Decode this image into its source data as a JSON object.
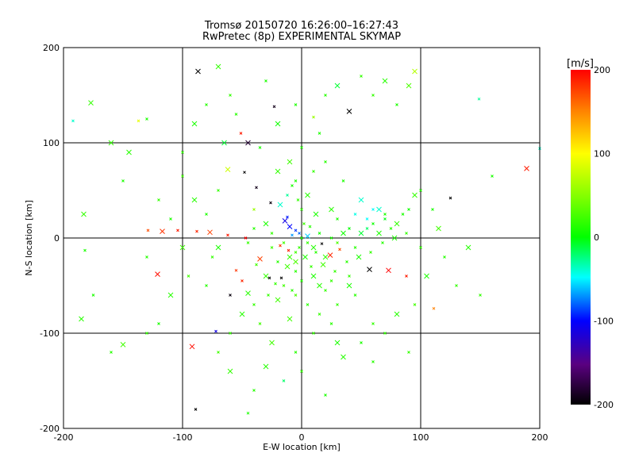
{
  "chart_data": {
    "type": "scatter",
    "title": "Tromsø 20150720 16:26:00–16:27:43",
    "subtitle": "RwPretec (8p) EXPERIMENTAL SKYMAP",
    "xlabel": "E-W location [km]",
    "ylabel": "N-S location [km]",
    "xlim": [
      -200,
      200
    ],
    "ylim": [
      -200,
      200
    ],
    "xticks": [
      -200,
      -100,
      0,
      100,
      200
    ],
    "yticks": [
      -200,
      -100,
      0,
      100,
      200
    ],
    "grid_lines": [
      -100,
      0,
      100
    ],
    "colorbar": {
      "label": "[m/s]",
      "range": [
        -200,
        200
      ],
      "ticks": [
        200,
        100,
        0,
        -100,
        -200
      ]
    },
    "marker": "x",
    "points_format": [
      "x_km",
      "y_km",
      "velocity_m_s"
    ],
    "points": [
      [
        -87,
        175,
        -200
      ],
      [
        -23,
        138,
        -190
      ],
      [
        -51,
        110,
        190
      ],
      [
        189,
        73,
        190
      ],
      [
        125,
        42,
        -200
      ],
      [
        -129,
        8,
        170
      ],
      [
        -117,
        7,
        180
      ],
      [
        -104,
        8,
        190
      ],
      [
        -88,
        7,
        185
      ],
      [
        -77,
        6,
        175
      ],
      [
        -62,
        3,
        190
      ],
      [
        -47,
        0,
        200
      ],
      [
        -121,
        -38,
        195
      ],
      [
        88,
        -40,
        190
      ],
      [
        111,
        -74,
        150
      ],
      [
        -92,
        -114,
        195
      ],
      [
        -72,
        -98,
        -110
      ],
      [
        -89,
        -180,
        -200
      ],
      [
        57,
        -33,
        -200
      ],
      [
        -27,
        -42,
        -200
      ],
      [
        -17,
        -42,
        -200
      ],
      [
        -177,
        142,
        20
      ],
      [
        -192,
        123,
        -40
      ],
      [
        -137,
        123,
        90
      ],
      [
        -183,
        25,
        20
      ],
      [
        -182,
        -13,
        10
      ],
      [
        149,
        146,
        -30
      ],
      [
        95,
        175,
        70
      ],
      [
        -45,
        -184,
        10
      ],
      [
        200,
        94,
        -40
      ],
      [
        -10,
        12,
        -100
      ],
      [
        -5,
        8,
        -90
      ],
      [
        -2,
        5,
        -80
      ],
      [
        -14,
        18,
        -110
      ],
      [
        -8,
        3,
        -70
      ],
      [
        -12,
        22,
        -95
      ],
      [
        5,
        2,
        -60
      ],
      [
        -18,
        -8,
        180
      ],
      [
        -11,
        -13,
        190
      ],
      [
        24,
        -18,
        185
      ],
      [
        32,
        -12,
        170
      ],
      [
        17,
        -6,
        -200
      ],
      [
        -35,
        -22,
        175
      ],
      [
        -55,
        -34,
        180
      ],
      [
        -60,
        -60,
        -195
      ],
      [
        73,
        -34,
        200
      ],
      [
        -50,
        -45,
        185
      ],
      [
        -48,
        69,
        -200
      ],
      [
        -45,
        100,
        -180
      ],
      [
        -38,
        53,
        -190
      ],
      [
        -26,
        37,
        -195
      ],
      [
        40,
        133,
        -200
      ],
      [
        10,
        127,
        60
      ],
      [
        -40,
        30,
        60
      ],
      [
        -62,
        72,
        80
      ],
      [
        0,
        0,
        10
      ],
      [
        5,
        -5,
        20
      ],
      [
        10,
        -10,
        15
      ],
      [
        -5,
        -15,
        25
      ],
      [
        15,
        5,
        5
      ],
      [
        20,
        -20,
        20
      ],
      [
        25,
        0,
        10
      ],
      [
        30,
        -5,
        30
      ],
      [
        -10,
        -20,
        20
      ],
      [
        -20,
        -25,
        15
      ],
      [
        -25,
        -10,
        25
      ],
      [
        35,
        5,
        5
      ],
      [
        40,
        10,
        0
      ],
      [
        45,
        -10,
        15
      ],
      [
        50,
        5,
        -10
      ],
      [
        55,
        10,
        -20
      ],
      [
        60,
        15,
        5
      ],
      [
        65,
        5,
        10
      ],
      [
        70,
        20,
        -5
      ],
      [
        75,
        10,
        15
      ],
      [
        80,
        15,
        20
      ],
      [
        85,
        25,
        10
      ],
      [
        90,
        30,
        5
      ],
      [
        -30,
        -40,
        20
      ],
      [
        -15,
        -50,
        25
      ],
      [
        0,
        -45,
        15
      ],
      [
        10,
        -40,
        10
      ],
      [
        20,
        -55,
        20
      ],
      [
        -5,
        -60,
        30
      ],
      [
        -20,
        -65,
        25
      ],
      [
        5,
        -70,
        15
      ],
      [
        15,
        -80,
        20
      ],
      [
        -10,
        -85,
        25
      ],
      [
        25,
        -90,
        15
      ],
      [
        30,
        -70,
        20
      ],
      [
        40,
        -50,
        10
      ],
      [
        45,
        -60,
        15
      ],
      [
        -40,
        -70,
        20
      ],
      [
        -50,
        -80,
        15
      ],
      [
        -35,
        -90,
        25
      ],
      [
        -60,
        -100,
        20
      ],
      [
        -25,
        -110,
        25
      ],
      [
        -5,
        -120,
        15
      ],
      [
        10,
        -100,
        20
      ],
      [
        30,
        -110,
        10
      ],
      [
        0,
        -140,
        20
      ],
      [
        -15,
        -150,
        -20
      ],
      [
        -30,
        -135,
        15
      ],
      [
        -70,
        -120,
        25
      ],
      [
        0,
        30,
        20
      ],
      [
        5,
        45,
        15
      ],
      [
        -5,
        60,
        10
      ],
      [
        10,
        70,
        20
      ],
      [
        -10,
        80,
        25
      ],
      [
        0,
        95,
        15
      ],
      [
        15,
        110,
        10
      ],
      [
        -20,
        120,
        5
      ],
      [
        -5,
        140,
        10
      ],
      [
        20,
        150,
        15
      ],
      [
        30,
        160,
        -10
      ],
      [
        -30,
        165,
        10
      ],
      [
        50,
        170,
        20
      ],
      [
        70,
        165,
        15
      ],
      [
        60,
        150,
        20
      ],
      [
        80,
        140,
        10
      ],
      [
        90,
        160,
        30
      ],
      [
        -60,
        150,
        20
      ],
      [
        -80,
        140,
        15
      ],
      [
        -90,
        120,
        10
      ],
      [
        -100,
        90,
        20
      ],
      [
        -100,
        65,
        25
      ],
      [
        -90,
        40,
        15
      ],
      [
        -80,
        25,
        10
      ],
      [
        -70,
        50,
        20
      ],
      [
        -65,
        100,
        -10
      ],
      [
        -55,
        130,
        15
      ],
      [
        -35,
        95,
        10
      ],
      [
        -20,
        70,
        20
      ],
      [
        20,
        80,
        15
      ],
      [
        35,
        60,
        10
      ],
      [
        50,
        40,
        -40
      ],
      [
        60,
        30,
        -50
      ],
      [
        70,
        25,
        10
      ],
      [
        95,
        45,
        20
      ],
      [
        100,
        50,
        15
      ],
      [
        110,
        30,
        10
      ],
      [
        115,
        10,
        25
      ],
      [
        100,
        -10,
        20
      ],
      [
        120,
        -20,
        15
      ],
      [
        105,
        -40,
        10
      ],
      [
        130,
        -50,
        20
      ],
      [
        95,
        -70,
        25
      ],
      [
        80,
        -80,
        15
      ],
      [
        60,
        -90,
        20
      ],
      [
        50,
        -110,
        10
      ],
      [
        35,
        -125,
        15
      ],
      [
        70,
        -100,
        20
      ],
      [
        -95,
        -40,
        25
      ],
      [
        -110,
        -60,
        15
      ],
      [
        -120,
        -90,
        10
      ],
      [
        -130,
        -100,
        20
      ],
      [
        -150,
        -112,
        25
      ],
      [
        -160,
        -120,
        15
      ],
      [
        -150,
        60,
        10
      ],
      [
        -160,
        100,
        20
      ],
      [
        -130,
        -20,
        15
      ],
      [
        -110,
        20,
        10
      ],
      [
        -100,
        -10,
        25
      ],
      [
        -75,
        -20,
        20
      ],
      [
        -80,
        -50,
        15
      ],
      [
        -70,
        -10,
        10
      ],
      [
        -45,
        -5,
        20
      ],
      [
        -40,
        10,
        15
      ],
      [
        -30,
        15,
        10
      ],
      [
        -25,
        5,
        20
      ],
      [
        -15,
        -5,
        25
      ],
      [
        -5,
        -25,
        30
      ],
      [
        8,
        -30,
        20
      ],
      [
        12,
        -15,
        15
      ],
      [
        18,
        -28,
        25
      ],
      [
        28,
        -35,
        20
      ],
      [
        38,
        -25,
        15
      ],
      [
        48,
        -20,
        10
      ],
      [
        58,
        -15,
        20
      ],
      [
        68,
        -5,
        15
      ],
      [
        78,
        0,
        10
      ],
      [
        88,
        5,
        20
      ],
      [
        -5,
        -35,
        15
      ],
      [
        -12,
        -30,
        25
      ],
      [
        -22,
        -48,
        20
      ],
      [
        -8,
        -55,
        15
      ],
      [
        3,
        -20,
        10
      ],
      [
        -2,
        -10,
        20
      ],
      [
        7,
        12,
        15
      ],
      [
        12,
        25,
        10
      ],
      [
        -3,
        40,
        20
      ],
      [
        2,
        15,
        25
      ],
      [
        -18,
        35,
        -40
      ],
      [
        -12,
        45,
        -30
      ],
      [
        -8,
        55,
        10
      ],
      [
        25,
        30,
        15
      ],
      [
        45,
        25,
        -45
      ],
      [
        55,
        20,
        -50
      ],
      [
        65,
        30,
        -40
      ],
      [
        30,
        20,
        10
      ],
      [
        40,
        -40,
        20
      ],
      [
        -45,
        -58,
        15
      ],
      [
        -38,
        -28,
        25
      ],
      [
        -28,
        -60,
        20
      ],
      [
        15,
        -50,
        15
      ],
      [
        25,
        -45,
        20
      ],
      [
        -130,
        125,
        10
      ],
      [
        -145,
        90,
        15
      ],
      [
        -120,
        40,
        20
      ],
      [
        160,
        65,
        10
      ],
      [
        140,
        -10,
        15
      ],
      [
        150,
        -60,
        20
      ],
      [
        -175,
        -60,
        10
      ],
      [
        -185,
        -85,
        15
      ],
      [
        90,
        -120,
        20
      ],
      [
        60,
        -130,
        15
      ],
      [
        -60,
        -140,
        20
      ],
      [
        -40,
        -160,
        15
      ],
      [
        20,
        -165,
        10
      ],
      [
        -70,
        180,
        20
      ]
    ]
  }
}
